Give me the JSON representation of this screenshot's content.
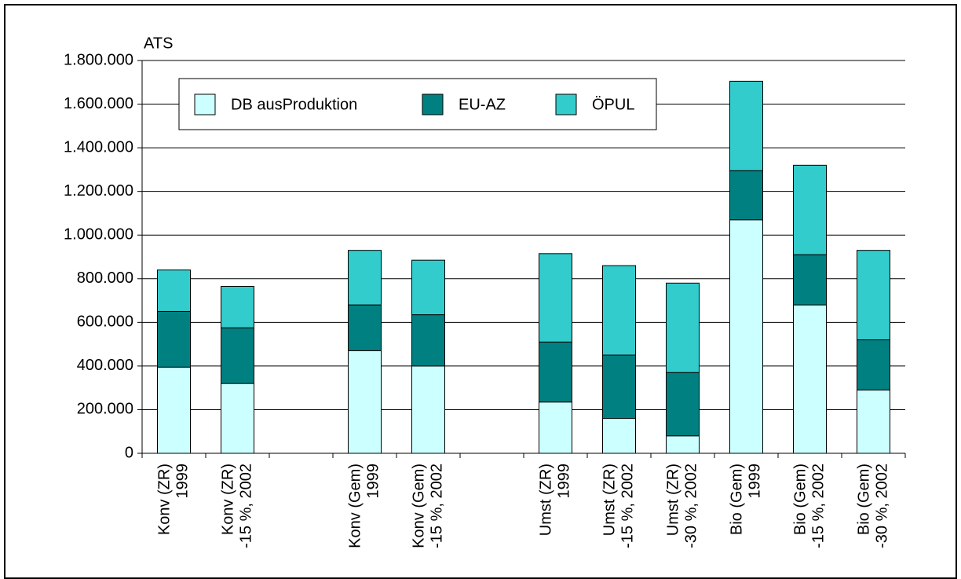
{
  "chart_data": {
    "type": "stacked_bar",
    "y_label": "ATS",
    "categories": [
      [
        "Konv (ZR)",
        "1999"
      ],
      [
        "Konv (ZR)",
        "-15 %, 2002"
      ],
      null,
      [
        "Konv (Gem)",
        "1999"
      ],
      [
        "Konv (Gem)",
        "-15 %, 2002"
      ],
      null,
      [
        "Umst (ZR)",
        "1999"
      ],
      [
        "Umst (ZR)",
        "-15 %, 2002"
      ],
      [
        "Umst (ZR)",
        "-30 %, 2002"
      ],
      [
        "Bio (Gem)",
        "1999"
      ],
      [
        "Bio (Gem)",
        "-15 %, 2002"
      ],
      [
        "Bio (Gem)",
        "-30 %, 2002"
      ]
    ],
    "series": [
      {
        "name": "DB ausProduktion",
        "color": "#ccffff",
        "values": [
          395000,
          320000,
          null,
          470000,
          400000,
          null,
          235000,
          160000,
          80000,
          1070000,
          680000,
          290000
        ]
      },
      {
        "name": "EU-AZ",
        "color": "#008080",
        "values": [
          255000,
          255000,
          null,
          210000,
          235000,
          null,
          275000,
          290000,
          290000,
          225000,
          230000,
          230000
        ]
      },
      {
        "name": "ÖPUL",
        "color": "#33cccc",
        "values": [
          190000,
          190000,
          null,
          250000,
          250000,
          null,
          405000,
          410000,
          410000,
          410000,
          410000,
          410000
        ]
      }
    ],
    "ylim": [
      0,
      1800000
    ],
    "yticks": [
      0,
      {
        "value": 200000,
        "label": "200.000"
      },
      {
        "value": 400000,
        "label": "400.000"
      },
      {
        "value": 600000,
        "label": "600.000"
      },
      {
        "value": 800000,
        "label": "800.000"
      },
      {
        "value": 1000000,
        "label": "1.000.000"
      },
      {
        "value": 1200000,
        "label": "1.200.000"
      },
      {
        "value": 1400000,
        "label": "1.400.000"
      },
      {
        "value": 1600000,
        "label": "1.600.000"
      },
      {
        "value": 1800000,
        "label": "1.800.000"
      }
    ],
    "grid": true,
    "legend": "top"
  }
}
